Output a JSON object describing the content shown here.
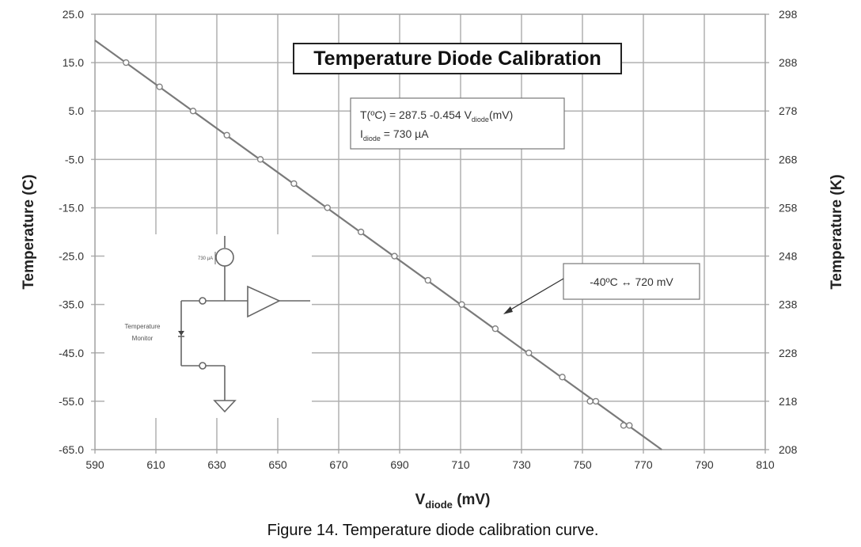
{
  "chart_data": {
    "type": "line",
    "title": "Temperature Diode Calibration",
    "xlabel_main": "V",
    "xlabel_sub": "diode",
    "xlabel_unit": " (mV)",
    "ylabel": "Temperature (C)",
    "y2label": "Temperature (K)",
    "xlim": [
      590,
      810
    ],
    "ylim": [
      -65,
      25
    ],
    "grid": true,
    "x_ticks": [
      "590",
      "610",
      "630",
      "650",
      "670",
      "690",
      "710",
      "730",
      "750",
      "770",
      "790",
      "810"
    ],
    "y_ticks": [
      "25.0",
      "15.0",
      "5.0",
      "-5.0",
      "-15.0",
      "-25.0",
      "-35.0",
      "-45.0",
      "-55.0",
      "-65.0"
    ],
    "y2_ticks": [
      "298",
      "288",
      "278",
      "268",
      "258",
      "248",
      "238",
      "228",
      "218",
      "208"
    ],
    "fit_line": {
      "x": [
        590,
        776
      ],
      "y": [
        19.6,
        -65
      ]
    },
    "points": {
      "x": [
        600.2,
        611.2,
        622.2,
        633.3,
        644.3,
        655.3,
        666.3,
        677.3,
        688.3,
        699.3,
        710.4,
        721.4,
        732.4,
        743.4,
        752.5,
        754.4,
        763.5,
        765.4
      ],
      "y": [
        15,
        10,
        5,
        0,
        -5,
        -10,
        -15,
        -20,
        -25,
        -30,
        -35,
        -40,
        -45,
        -50,
        -55,
        -55,
        -60,
        -60
      ]
    },
    "equation": {
      "line1_pre": "T(ºC)  = 287.5 -0.454 V",
      "line1_sub": "diode",
      "line1_post": "(mV)",
      "line2_pre": "I",
      "line2_sub": "diode",
      "line2_post": " = 730 µA"
    },
    "annotation": {
      "text": "-40ºC ↔ 720 mV",
      "x": 720,
      "y": -40
    },
    "inset_circuit": {
      "current_label": "730 µA",
      "label_line1": "Temperature",
      "label_line2": "Monitor"
    }
  },
  "caption": "Figure 14.  Temperature diode calibration curve.",
  "colors": {
    "line": "#7a7a7a",
    "grid": "#b0b0b0",
    "marker": "#808080"
  }
}
